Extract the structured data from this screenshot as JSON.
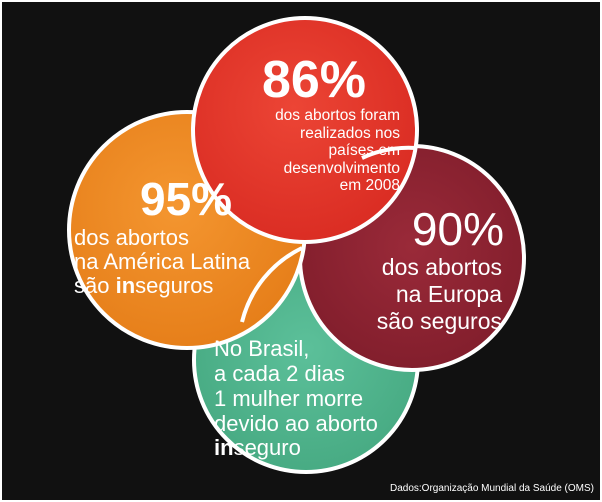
{
  "colors": {
    "background": "#111111",
    "circle_top": "#e6392c",
    "circle_left": "#ef8a22",
    "circle_right": "#8e2232",
    "circle_bottom": "#52b690",
    "text": "#ffffff"
  },
  "circles": {
    "top": {
      "value": "86%",
      "lines": [
        "dos abortos foram",
        "realizados nos",
        "países em",
        "desenvolvimento",
        "em 2008"
      ]
    },
    "left": {
      "value": "95%",
      "lines": [
        "dos abortos",
        "na América Latina"
      ],
      "last_line_prefix": "são ",
      "last_line_bold": "in",
      "last_line_suffix": "seguros"
    },
    "right": {
      "value": "90%",
      "lines": [
        "dos abortos",
        "na Europa",
        "são seguros"
      ]
    },
    "bottom": {
      "lines": [
        "No Brasil,",
        "a cada 2 dias",
        "1 mulher morre",
        "devido ao aborto"
      ],
      "last_line_bold": "in",
      "last_line_suffix": "seguro"
    }
  },
  "footer": {
    "source": "Dados:Organização Mundial da Saúde (OMS)"
  }
}
